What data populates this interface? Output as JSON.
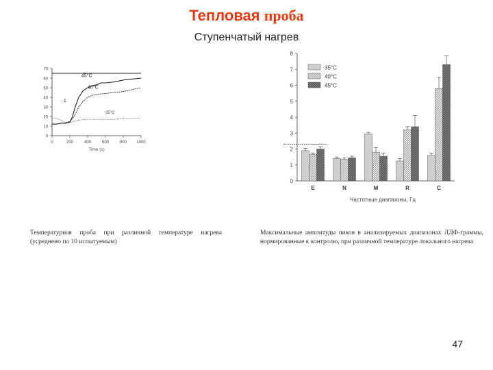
{
  "slide": {
    "title_part1": "Тепловая",
    "title_part2": "проба",
    "subtitle": "Ступенчатый нагрев",
    "caption_left": "Температурная проба при различной температуре нагрева (усреднено по 10 испытуемым)",
    "caption_right": "Максимальные амплитуды пиков в анализируемых диапазонах ЛДФ-граммы, нормированные к контролю, при различной температуре локального нагрева",
    "page_number": "47",
    "title_color": "#e53a10"
  },
  "chart_data": [
    {
      "type": "line",
      "title": "",
      "xlabel": "Time (s)",
      "ylabel": "",
      "xlim": [
        0,
        1000
      ],
      "ylim": [
        0,
        70
      ],
      "xticks": [
        "0",
        "200",
        "400",
        "600",
        "800",
        "1000"
      ],
      "yticks": [
        "0",
        "10",
        "20",
        "30",
        "40",
        "50",
        "60",
        "70"
      ],
      "reference_line": 65,
      "annotations": [
        "45°C",
        "40°C",
        "35°C",
        "1"
      ],
      "series": [
        {
          "name": "45°C",
          "x": [
            0,
            50,
            100,
            150,
            200,
            230,
            260,
            300,
            350,
            400,
            450,
            500,
            550,
            600,
            700,
            800,
            900,
            1000
          ],
          "y": [
            12,
            12,
            13,
            13,
            14,
            20,
            30,
            40,
            47,
            50,
            52,
            53,
            55,
            55,
            56,
            58,
            59,
            60
          ]
        },
        {
          "name": "40°C",
          "x": [
            0,
            50,
            100,
            150,
            200,
            250,
            300,
            350,
            400,
            450,
            500,
            600,
            700,
            800,
            900,
            1000
          ],
          "y": [
            12,
            12,
            13,
            13,
            15,
            20,
            30,
            36,
            40,
            42,
            43,
            44,
            45,
            46,
            48,
            50
          ]
        },
        {
          "name": "35°C",
          "x": [
            0,
            50,
            100,
            150,
            200,
            250,
            300,
            350,
            400,
            500,
            600,
            700,
            800,
            900,
            1000
          ],
          "y": [
            18,
            18,
            16,
            14,
            14,
            15,
            16,
            17,
            17,
            17,
            17,
            17,
            18,
            18,
            18
          ]
        }
      ]
    },
    {
      "type": "bar",
      "title": "",
      "xlabel": "Частотные диапазоны, Гц",
      "ylabel": "",
      "ylim": [
        0,
        8
      ],
      "yticks": [
        "0",
        "1",
        "2",
        "3",
        "4",
        "5",
        "6",
        "7",
        "8"
      ],
      "categories": [
        "E",
        "N",
        "M",
        "R",
        "C"
      ],
      "reference_line": 2.3,
      "legend_position": "top-left",
      "series": [
        {
          "name": "35°C",
          "values": [
            1.9,
            1.4,
            2.95,
            1.25,
            1.6
          ],
          "errors": [
            0.15,
            0.1,
            0.1,
            0.15,
            0.15
          ]
        },
        {
          "name": "40°C",
          "values": [
            1.65,
            1.35,
            1.8,
            3.2,
            5.8
          ],
          "errors": [
            0.1,
            0.1,
            0.3,
            0.2,
            0.7
          ]
        },
        {
          "name": "45°C",
          "values": [
            2.0,
            1.45,
            1.55,
            3.4,
            7.3
          ],
          "errors": [
            0.15,
            0.1,
            0.2,
            0.7,
            0.55
          ]
        }
      ]
    }
  ]
}
